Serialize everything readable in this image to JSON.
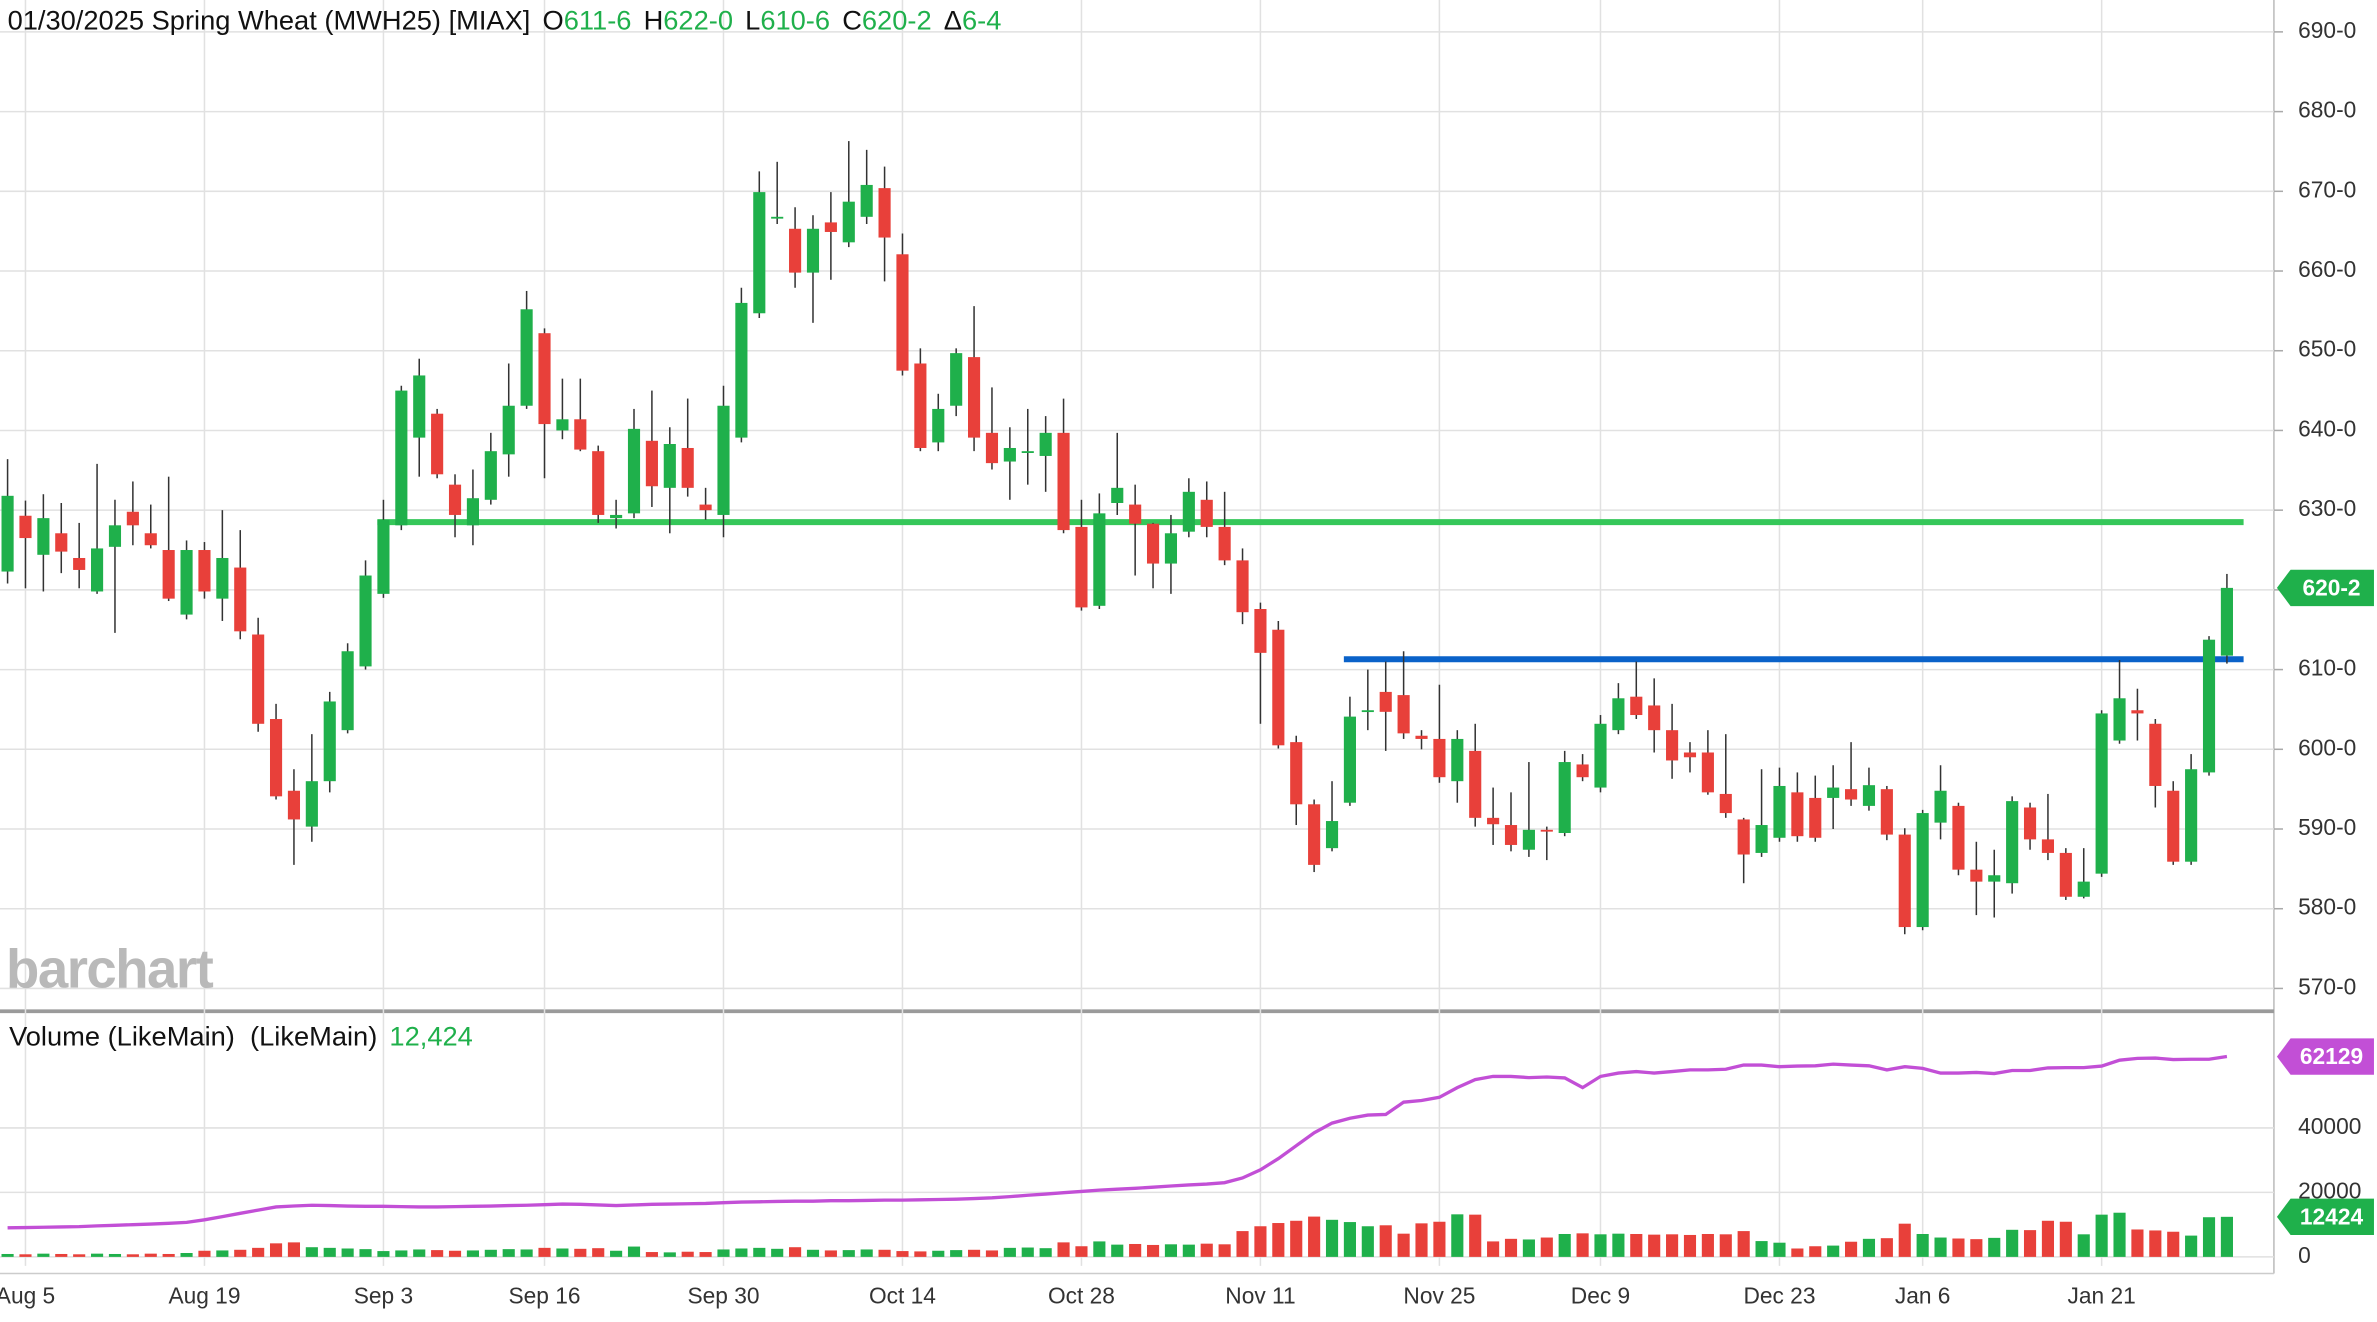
{
  "chart_data": {
    "type": "candlestick",
    "title": "01/30/2025 Spring Wheat (MWH25) [MIAX]",
    "header": [
      {
        "prefix": "O",
        "label": "611-6"
      },
      {
        "prefix": "H",
        "label": "622-0"
      },
      {
        "prefix": "L",
        "label": "610-6"
      },
      {
        "prefix": "C",
        "label": "620-2"
      },
      {
        "prefix": "Δ",
        "label": "6-4"
      }
    ],
    "watermark": "barchart",
    "categories": [
      null,
      "Aug 5",
      null,
      null,
      null,
      null,
      null,
      null,
      null,
      null,
      null,
      "Aug 19",
      null,
      null,
      null,
      null,
      null,
      null,
      null,
      null,
      null,
      "Sep 3",
      null,
      null,
      null,
      null,
      null,
      null,
      null,
      null,
      "Sep 16",
      null,
      null,
      null,
      null,
      null,
      null,
      null,
      null,
      null,
      "Sep 30",
      null,
      null,
      null,
      null,
      null,
      null,
      null,
      null,
      null,
      "Oct 14",
      null,
      null,
      null,
      null,
      null,
      null,
      null,
      null,
      null,
      "Oct 28",
      null,
      null,
      null,
      null,
      null,
      null,
      null,
      null,
      null,
      "Nov 11",
      null,
      null,
      null,
      null,
      null,
      null,
      null,
      null,
      null,
      "Nov 25",
      null,
      null,
      null,
      null,
      null,
      null,
      null,
      null,
      "Dec 9",
      null,
      null,
      null,
      null,
      null,
      null,
      null,
      null,
      null,
      "Dec 23",
      null,
      null,
      null,
      null,
      null,
      null,
      null,
      "Jan 6",
      null,
      null,
      null,
      null,
      null,
      null,
      null,
      null,
      null,
      "Jan 21",
      null,
      null,
      null,
      null,
      null,
      null,
      null
    ],
    "open": [
      622.3,
      629.3,
      624.4,
      627.1,
      624,
      619.8,
      625.4,
      629.8,
      627.1,
      625,
      616.9,
      625,
      618.9,
      622.8,
      614.4,
      603.8,
      594.8,
      590.3,
      596,
      602.4,
      610.4,
      619.5,
      628.1,
      639.1,
      642.1,
      633.2,
      628.1,
      631.3,
      637,
      643.1,
      652.2,
      640,
      641.4,
      637.4,
      629,
      629.6,
      638.7,
      632.8,
      637.8,
      630.7,
      629.4,
      639.1,
      654.7,
      666.6,
      665.3,
      659.8,
      666.1,
      663.6,
      666.8,
      670.4,
      662.1,
      648.4,
      638.5,
      643.1,
      649.2,
      639.7,
      636.1,
      637.2,
      636.8,
      639.7,
      627.9,
      618,
      630.9,
      630.7,
      628.3,
      623.3,
      627.3,
      631.3,
      627.9,
      623.7,
      617.6,
      615,
      600.9,
      593.1,
      587.6,
      593.3,
      604.7,
      607.2,
      606.8,
      601.7,
      601.3,
      596,
      599.8,
      591.4,
      590.5,
      587.4,
      589.9,
      589.5,
      598.1,
      595.2,
      602.4,
      606.6,
      605.5,
      602.4,
      599.6,
      599.6,
      594.4,
      591.2,
      587,
      588.9,
      594.6,
      593.9,
      593.9,
      595,
      592.9,
      595,
      589.3,
      577.7,
      590.8,
      592.9,
      584.9,
      583.4,
      583.2,
      592.7,
      588.7,
      587,
      581.5,
      584.4,
      601.1,
      604.9,
      603.2,
      594.8,
      585.9,
      597.1,
      611.75
    ],
    "high": [
      636.4,
      631.2,
      632,
      630.9,
      628.4,
      635.8,
      631.3,
      633.6,
      630.7,
      634.2,
      626.2,
      626,
      630,
      627.5,
      616.5,
      605.7,
      597.5,
      601.9,
      607.2,
      613.3,
      623.7,
      631.3,
      645.6,
      649,
      642.7,
      634.5,
      635.1,
      639.7,
      648.4,
      657.5,
      652.8,
      646.5,
      646.5,
      638.1,
      631.3,
      642.7,
      645,
      640.4,
      644,
      632.8,
      645.6,
      657.9,
      672.5,
      673.7,
      668,
      667,
      669.9,
      676.3,
      675.2,
      673.1,
      664.7,
      650.3,
      644.6,
      650.3,
      655.6,
      645.4,
      640.4,
      642.7,
      641.8,
      644,
      631.3,
      632.1,
      639.7,
      633.2,
      628.4,
      629.4,
      634,
      633.6,
      632.3,
      625.2,
      618.4,
      616.1,
      601.7,
      593.7,
      596,
      606.6,
      610,
      611,
      612.3,
      602.4,
      608.1,
      602.4,
      603.2,
      595.2,
      594.6,
      598.4,
      590.3,
      599.8,
      599.4,
      604.3,
      608.3,
      611,
      608.9,
      605.7,
      600.9,
      602.4,
      601.9,
      591.4,
      597.5,
      597.7,
      597.1,
      596.7,
      598,
      600.9,
      597.7,
      595.4,
      590.1,
      592.4,
      598,
      593.3,
      588.4,
      587.4,
      594.1,
      593.3,
      594.4,
      587.6,
      587.6,
      604.9,
      611.2,
      607.6,
      603.8,
      596,
      599.4,
      614.2,
      622
    ],
    "low": [
      620.8,
      620.2,
      619.8,
      622.1,
      620.2,
      619.5,
      614.6,
      625.6,
      625.2,
      618.6,
      616.3,
      618.9,
      616.1,
      613.8,
      602.2,
      593.7,
      585.5,
      588.4,
      594.6,
      602,
      610,
      619,
      627.5,
      634.2,
      634,
      626.6,
      625.6,
      630.7,
      634.2,
      642.7,
      634,
      638.9,
      637.4,
      628.4,
      627.7,
      629,
      630.4,
      627.1,
      631.7,
      628.8,
      626.6,
      638.5,
      654.1,
      665.9,
      657.9,
      653.5,
      658.9,
      663,
      665.9,
      658.7,
      646.9,
      637.4,
      637.4,
      641.8,
      637.4,
      635.1,
      631.3,
      633.2,
      632.3,
      627.1,
      617.4,
      617.6,
      629.4,
      621.8,
      620.2,
      619.5,
      626.6,
      626.6,
      623.1,
      615.7,
      603.2,
      600.1,
      590.5,
      584.6,
      587.2,
      592.9,
      602.4,
      599.8,
      601.3,
      600,
      595.8,
      593.3,
      590.3,
      588,
      587.2,
      586.5,
      586.1,
      589.1,
      596,
      594.6,
      601.9,
      603.8,
      599.6,
      596.3,
      597.1,
      594.3,
      591.4,
      583.2,
      586.5,
      588.4,
      588.4,
      588.4,
      590,
      592.9,
      592.3,
      588.6,
      576.8,
      577.3,
      588.7,
      584.2,
      579.2,
      578.9,
      581.9,
      587.4,
      586.1,
      581.1,
      581.3,
      584,
      600.7,
      601.1,
      592.7,
      585.5,
      585.5,
      596.7,
      610.75
    ],
    "close": [
      631.8,
      626.5,
      629,
      624.8,
      622.5,
      625.2,
      628.1,
      628.1,
      625.6,
      618.9,
      625,
      619.8,
      624,
      614.8,
      603.2,
      594.1,
      591.2,
      596,
      606,
      612.3,
      621.8,
      628.8,
      645,
      646.9,
      634.5,
      629.4,
      631.5,
      637.4,
      643.1,
      655.2,
      640.8,
      641.4,
      637.6,
      629.4,
      629.4,
      640.2,
      633,
      638.3,
      632.8,
      630,
      643.1,
      656,
      669.9,
      666.8,
      659.8,
      665.3,
      664.9,
      668.7,
      670.8,
      664.2,
      647.5,
      637.8,
      642.7,
      649.7,
      639.1,
      635.9,
      637.8,
      637.4,
      639.7,
      627.5,
      617.8,
      629.6,
      632.8,
      628.3,
      623.3,
      627.1,
      632.3,
      627.9,
      623.7,
      617.2,
      612.1,
      600.5,
      593.1,
      585.5,
      591,
      604.1,
      604.9,
      604.7,
      602,
      601.3,
      596.5,
      601.3,
      591.4,
      590.6,
      588,
      589.9,
      589.7,
      598.4,
      596.5,
      603.2,
      606.4,
      604.3,
      602.4,
      598.6,
      599,
      594.6,
      592,
      586.8,
      590.5,
      595.4,
      589.1,
      588.9,
      595.2,
      593.7,
      595.5,
      589.3,
      577.7,
      592,
      594.8,
      584.9,
      583.4,
      584.2,
      593.5,
      588.7,
      587,
      581.5,
      583.4,
      604.5,
      606.4,
      604.5,
      595.4,
      585.9,
      597.5,
      613.75,
      620.25
    ],
    "last_label": "620-2",
    "up_color": "#1fb04b",
    "down_color": "#e8403a",
    "ylim": [
      567.6,
      694
    ],
    "yticks": [
      {
        "value": 570,
        "label": "570-0"
      },
      {
        "value": 580,
        "label": "580-0"
      },
      {
        "value": 590,
        "label": "590-0"
      },
      {
        "value": 600,
        "label": "600-0"
      },
      {
        "value": 610,
        "label": "610-0"
      },
      {
        "value": 620,
        "label": "620-0"
      },
      {
        "value": 630,
        "label": "630-0"
      },
      {
        "value": 640,
        "label": "640-0"
      },
      {
        "value": 650,
        "label": "650-0"
      },
      {
        "value": 660,
        "label": "660-0"
      },
      {
        "value": 670,
        "label": "670-0"
      },
      {
        "value": 680,
        "label": "680-0"
      },
      {
        "value": 690,
        "label": "690-0"
      }
    ],
    "grid": true,
    "levels": [
      {
        "value": 628.5,
        "start": 21,
        "color": "#35c759"
      },
      {
        "value": 611.3,
        "start": 75,
        "color": "#0a62c9"
      }
    ],
    "volume": {
      "title": "Volume (LikeMain)  (LikeMain)",
      "value_label": "12,424",
      "last_label": "12424",
      "values": [
        900,
        800,
        1000,
        900,
        800,
        1000,
        900,
        800,
        1000,
        900,
        1200,
        1900,
        2000,
        2200,
        2800,
        4200,
        4500,
        3000,
        2800,
        2600,
        2400,
        1800,
        2000,
        2300,
        2100,
        1900,
        2000,
        2200,
        2400,
        2300,
        2800,
        2600,
        2500,
        2700,
        1900,
        3200,
        1500,
        1400,
        1600,
        1500,
        2300,
        2600,
        2800,
        2500,
        3000,
        2200,
        2000,
        2100,
        2300,
        2200,
        1800,
        1700,
        1900,
        2100,
        2200,
        2000,
        2800,
        2900,
        2700,
        4500,
        3300,
        4800,
        3800,
        4000,
        3700,
        3900,
        3800,
        4100,
        3900,
        8000,
        9500,
        10500,
        11200,
        12500,
        11500,
        10800,
        9500,
        9800,
        7200,
        10400,
        10900,
        13200,
        13100,
        4800,
        5600,
        5400,
        6000,
        7100,
        7300,
        7000,
        7200,
        7100,
        6900,
        7000,
        6800,
        7100,
        7000,
        8000,
        4900,
        4400,
        2600,
        3300,
        3500,
        4700,
        5600,
        5800,
        10300,
        7100,
        6000,
        5700,
        5500,
        5900,
        8400,
        8300,
        11200,
        10900,
        7000,
        13100,
        13700,
        8500,
        8200,
        7800,
        6600,
        12300,
        12424
      ],
      "average": {
        "color": "#c24fd6",
        "last_label": "62129",
        "values": [
          9000,
          9100,
          9200,
          9300,
          9400,
          9600,
          9800,
          10000,
          10200,
          10400,
          10700,
          11500,
          12500,
          13500,
          14500,
          15500,
          15800,
          16000,
          15900,
          15800,
          15700,
          15700,
          15600,
          15500,
          15500,
          15600,
          15700,
          15800,
          15900,
          16000,
          16200,
          16400,
          16300,
          16100,
          15900,
          16100,
          16300,
          16400,
          16500,
          16600,
          16800,
          17000,
          17100,
          17200,
          17300,
          17300,
          17400,
          17400,
          17500,
          17600,
          17600,
          17700,
          17800,
          17900,
          18100,
          18300,
          18700,
          19100,
          19500,
          19900,
          20300,
          20700,
          21000,
          21300,
          21600,
          22000,
          22300,
          22600,
          23000,
          24500,
          27000,
          30500,
          34500,
          38500,
          41500,
          43000,
          44000,
          44200,
          48000,
          48500,
          49500,
          52500,
          55000,
          56000,
          56000,
          55600,
          55800,
          55500,
          52500,
          56000,
          57000,
          57500,
          57000,
          57500,
          58000,
          58000,
          58200,
          59500,
          59500,
          59000,
          59200,
          59300,
          59800,
          59500,
          59300,
          58000,
          59000,
          58500,
          57000,
          57000,
          57200,
          56900,
          57800,
          57800,
          58600,
          58700,
          58700,
          59200,
          61000,
          61600,
          61700,
          61200,
          61300,
          61300,
          62129
        ]
      },
      "ylim": [
        -2800,
        74800
      ],
      "yticks": [
        0,
        20000,
        40000
      ]
    }
  }
}
